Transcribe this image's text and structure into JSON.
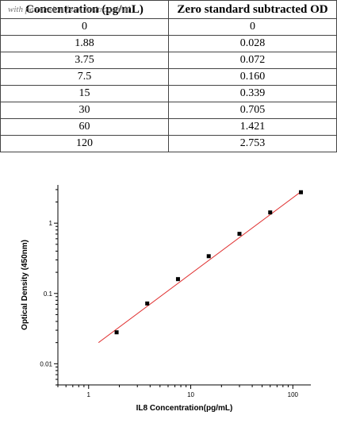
{
  "table": {
    "headers": [
      "Concentration (pg/mL)",
      "Zero standard subtracted OD"
    ],
    "rows": [
      [
        "0",
        "0"
      ],
      [
        "1.88",
        "0.028"
      ],
      [
        "3.75",
        "0.072"
      ],
      [
        "7.5",
        "0.160"
      ],
      [
        "15",
        "0.339"
      ],
      [
        "30",
        "0.705"
      ],
      [
        "60",
        "1.421"
      ],
      [
        "120",
        "2.753"
      ]
    ],
    "watermark": "with permission from Invitrogen/Al"
  },
  "chart_data": {
    "type": "scatter",
    "xlabel": "IL8  Concentration(pg/mL)",
    "ylabel": "Optical Density (450nm)",
    "xscale": "log",
    "yscale": "log",
    "xlim": [
      0.5,
      150
    ],
    "ylim": [
      0.005,
      3.5
    ],
    "xticks": [
      1,
      10,
      100
    ],
    "xtick_labels": [
      "1",
      "10",
      "100"
    ],
    "yticks": [
      0.01,
      0.1,
      1
    ],
    "ytick_labels": [
      "0.01",
      "0.1",
      "1"
    ],
    "grid": false,
    "series": [
      {
        "x": [
          1.88,
          3.75,
          7.5,
          15,
          30,
          60,
          120
        ],
        "y": [
          0.028,
          0.072,
          0.16,
          0.339,
          0.705,
          1.421,
          2.753
        ],
        "marker_color": "#000000"
      }
    ],
    "fit_line": {
      "x": [
        1.25,
        120
      ],
      "y": [
        0.02,
        2.8
      ],
      "color": "#e03030"
    }
  }
}
